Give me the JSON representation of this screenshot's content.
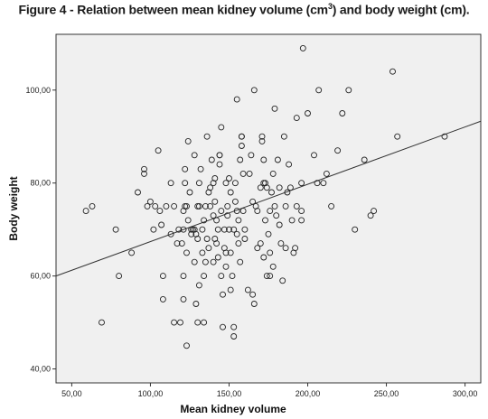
{
  "figure": {
    "title_text": "Figure 4 - Relation between mean kidney volume (cm",
    "title_sup": "3",
    "title_end": ") and body weight (cm)."
  },
  "chart_data": {
    "type": "scatter",
    "xlabel": "Mean kidney volume",
    "ylabel": "Body weight",
    "xlim": [
      40,
      310
    ],
    "ylim": [
      37,
      112
    ],
    "x_ticks": [
      "50,00",
      "100,00",
      "150,00",
      "200,00",
      "250,00",
      "300,00"
    ],
    "y_ticks": [
      "40,00",
      "60,00",
      "80,00",
      "100,00"
    ],
    "x_tick_values": [
      50,
      100,
      150,
      200,
      250,
      300
    ],
    "y_tick_values": [
      40,
      60,
      80,
      100
    ],
    "grid": false,
    "fit_line": {
      "x": [
        40,
        310
      ],
      "y": [
        60,
        93.3
      ]
    },
    "points": [
      [
        59,
        74
      ],
      [
        63,
        75
      ],
      [
        69,
        50
      ],
      [
        78,
        70
      ],
      [
        80,
        60
      ],
      [
        88,
        65
      ],
      [
        92,
        78
      ],
      [
        96,
        82
      ],
      [
        96,
        83
      ],
      [
        98,
        75
      ],
      [
        100,
        76
      ],
      [
        102,
        70
      ],
      [
        103,
        75
      ],
      [
        105,
        87
      ],
      [
        106,
        74
      ],
      [
        107,
        71
      ],
      [
        108,
        55
      ],
      [
        108,
        60
      ],
      [
        110,
        75
      ],
      [
        113,
        69
      ],
      [
        113,
        80
      ],
      [
        115,
        50
      ],
      [
        115,
        75
      ],
      [
        117,
        67
      ],
      [
        118,
        70
      ],
      [
        119,
        50
      ],
      [
        120,
        67
      ],
      [
        121,
        55
      ],
      [
        121,
        60
      ],
      [
        121,
        70
      ],
      [
        121,
        74
      ],
      [
        122,
        75
      ],
      [
        122,
        80
      ],
      [
        122,
        83
      ],
      [
        123,
        45
      ],
      [
        123,
        65
      ],
      [
        123,
        75
      ],
      [
        124,
        89
      ],
      [
        124,
        72
      ],
      [
        125,
        78
      ],
      [
        126,
        69
      ],
      [
        126,
        70
      ],
      [
        127,
        70
      ],
      [
        128,
        70
      ],
      [
        128,
        86
      ],
      [
        128,
        63
      ],
      [
        129,
        69
      ],
      [
        129,
        54
      ],
      [
        130,
        68
      ],
      [
        130,
        50
      ],
      [
        130,
        75
      ],
      [
        131,
        75
      ],
      [
        131,
        80
      ],
      [
        131,
        58
      ],
      [
        132,
        83
      ],
      [
        133,
        70
      ],
      [
        133,
        65
      ],
      [
        134,
        60
      ],
      [
        134,
        50
      ],
      [
        134,
        72
      ],
      [
        135,
        75
      ],
      [
        135,
        63
      ],
      [
        136,
        90
      ],
      [
        136,
        68
      ],
      [
        137,
        78
      ],
      [
        137,
        66
      ],
      [
        138,
        79
      ],
      [
        138,
        75
      ],
      [
        139,
        85
      ],
      [
        140,
        80
      ],
      [
        140,
        73
      ],
      [
        140,
        63
      ],
      [
        141,
        68
      ],
      [
        141,
        76
      ],
      [
        141,
        81
      ],
      [
        142,
        72
      ],
      [
        142,
        67
      ],
      [
        143,
        64
      ],
      [
        143,
        70
      ],
      [
        144,
        84
      ],
      [
        144,
        86
      ],
      [
        144,
        86
      ],
      [
        145,
        92
      ],
      [
        145,
        74
      ],
      [
        145,
        60
      ],
      [
        146,
        56
      ],
      [
        146,
        49
      ],
      [
        147,
        70
      ],
      [
        147,
        66
      ],
      [
        148,
        80
      ],
      [
        148,
        65
      ],
      [
        148,
        62
      ],
      [
        149,
        75
      ],
      [
        149,
        73
      ],
      [
        150,
        70
      ],
      [
        150,
        81
      ],
      [
        151,
        78
      ],
      [
        151,
        65
      ],
      [
        151,
        57
      ],
      [
        152,
        60
      ],
      [
        153,
        49
      ],
      [
        153,
        70
      ],
      [
        153,
        47
      ],
      [
        154,
        76
      ],
      [
        154,
        80
      ],
      [
        155,
        98
      ],
      [
        155,
        69
      ],
      [
        155,
        74
      ],
      [
        156,
        67
      ],
      [
        156,
        72
      ],
      [
        157,
        85
      ],
      [
        157,
        63
      ],
      [
        158,
        90
      ],
      [
        158,
        88
      ],
      [
        158,
        90
      ],
      [
        159,
        82
      ],
      [
        159,
        74
      ],
      [
        160,
        68
      ],
      [
        160,
        70
      ],
      [
        162,
        57
      ],
      [
        163,
        82
      ],
      [
        164,
        86
      ],
      [
        165,
        76
      ],
      [
        165,
        56
      ],
      [
        166,
        100
      ],
      [
        166,
        54
      ],
      [
        167,
        75
      ],
      [
        168,
        66
      ],
      [
        168,
        74
      ],
      [
        170,
        67
      ],
      [
        170,
        79
      ],
      [
        171,
        90
      ],
      [
        171,
        89
      ],
      [
        172,
        80
      ],
      [
        172,
        64
      ],
      [
        172,
        85
      ],
      [
        173,
        80
      ],
      [
        173,
        72
      ],
      [
        174,
        60
      ],
      [
        174,
        79
      ],
      [
        175,
        69
      ],
      [
        176,
        60
      ],
      [
        176,
        74
      ],
      [
        176,
        65
      ],
      [
        177,
        78
      ],
      [
        178,
        82
      ],
      [
        178,
        62
      ],
      [
        179,
        96
      ],
      [
        179,
        75
      ],
      [
        180,
        73
      ],
      [
        181,
        85
      ],
      [
        182,
        79
      ],
      [
        182,
        71
      ],
      [
        183,
        67
      ],
      [
        184,
        59
      ],
      [
        185,
        90
      ],
      [
        186,
        75
      ],
      [
        186,
        66
      ],
      [
        187,
        78
      ],
      [
        188,
        84
      ],
      [
        189,
        79
      ],
      [
        190,
        72
      ],
      [
        191,
        65
      ],
      [
        192,
        66
      ],
      [
        193,
        75
      ],
      [
        193,
        94
      ],
      [
        196,
        80
      ],
      [
        196,
        74
      ],
      [
        196,
        72
      ],
      [
        197,
        109
      ],
      [
        200,
        95
      ],
      [
        204,
        86
      ],
      [
        206,
        80
      ],
      [
        207,
        100
      ],
      [
        210,
        80
      ],
      [
        212,
        82
      ],
      [
        215,
        75
      ],
      [
        219,
        87
      ],
      [
        222,
        95
      ],
      [
        226,
        100
      ],
      [
        230,
        70
      ],
      [
        236,
        85
      ],
      [
        240,
        73
      ],
      [
        242,
        74
      ],
      [
        254,
        104
      ],
      [
        257,
        90
      ],
      [
        287,
        90
      ]
    ]
  }
}
